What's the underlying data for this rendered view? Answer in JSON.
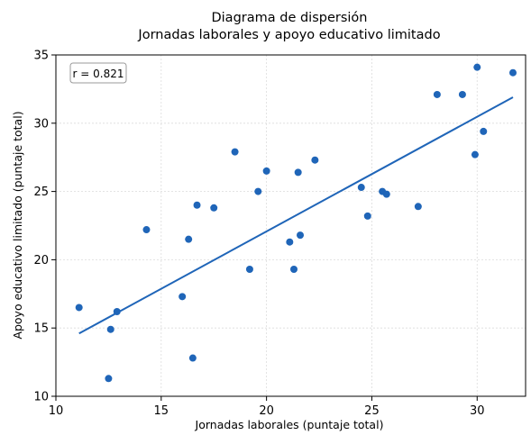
{
  "chart_data": {
    "type": "scatter",
    "title": "Diagrama de dispersión",
    "subtitle": "Jornadas laborales y apoyo educativo limitado",
    "xlabel": "Jornadas laborales (puntaje total)",
    "ylabel": "Apoyo educativo limitado (puntaje total)",
    "xlim": [
      10,
      32.3
    ],
    "ylim": [
      10,
      35
    ],
    "xticks": [
      10,
      15,
      20,
      25,
      30
    ],
    "yticks": [
      10,
      15,
      20,
      25,
      30,
      35
    ],
    "grid": true,
    "annotation": "r = 0.821",
    "annotation_placement": "top-left",
    "point_color": "#1f65b8",
    "line_color": "#1f65b8",
    "points": [
      {
        "x": 11.1,
        "y": 16.5
      },
      {
        "x": 12.5,
        "y": 11.3
      },
      {
        "x": 12.6,
        "y": 14.9
      },
      {
        "x": 12.9,
        "y": 16.2
      },
      {
        "x": 14.3,
        "y": 22.2
      },
      {
        "x": 16.0,
        "y": 17.3
      },
      {
        "x": 16.3,
        "y": 21.5
      },
      {
        "x": 16.5,
        "y": 12.8
      },
      {
        "x": 16.7,
        "y": 24.0
      },
      {
        "x": 17.5,
        "y": 23.8
      },
      {
        "x": 18.5,
        "y": 27.9
      },
      {
        "x": 19.2,
        "y": 19.3
      },
      {
        "x": 19.6,
        "y": 25.0
      },
      {
        "x": 20.0,
        "y": 26.5
      },
      {
        "x": 21.1,
        "y": 21.3
      },
      {
        "x": 21.3,
        "y": 19.3
      },
      {
        "x": 21.5,
        "y": 26.4
      },
      {
        "x": 21.6,
        "y": 21.8
      },
      {
        "x": 22.3,
        "y": 27.3
      },
      {
        "x": 24.5,
        "y": 25.3
      },
      {
        "x": 24.8,
        "y": 23.2
      },
      {
        "x": 25.5,
        "y": 25.0
      },
      {
        "x": 25.7,
        "y": 24.8
      },
      {
        "x": 27.2,
        "y": 23.9
      },
      {
        "x": 28.1,
        "y": 32.1
      },
      {
        "x": 29.3,
        "y": 32.1
      },
      {
        "x": 29.9,
        "y": 27.7
      },
      {
        "x": 30.0,
        "y": 34.1
      },
      {
        "x": 30.3,
        "y": 29.4
      },
      {
        "x": 31.7,
        "y": 33.7
      }
    ],
    "fit_line": {
      "x": [
        11.1,
        31.7
      ],
      "y": [
        14.6,
        31.9
      ]
    }
  }
}
